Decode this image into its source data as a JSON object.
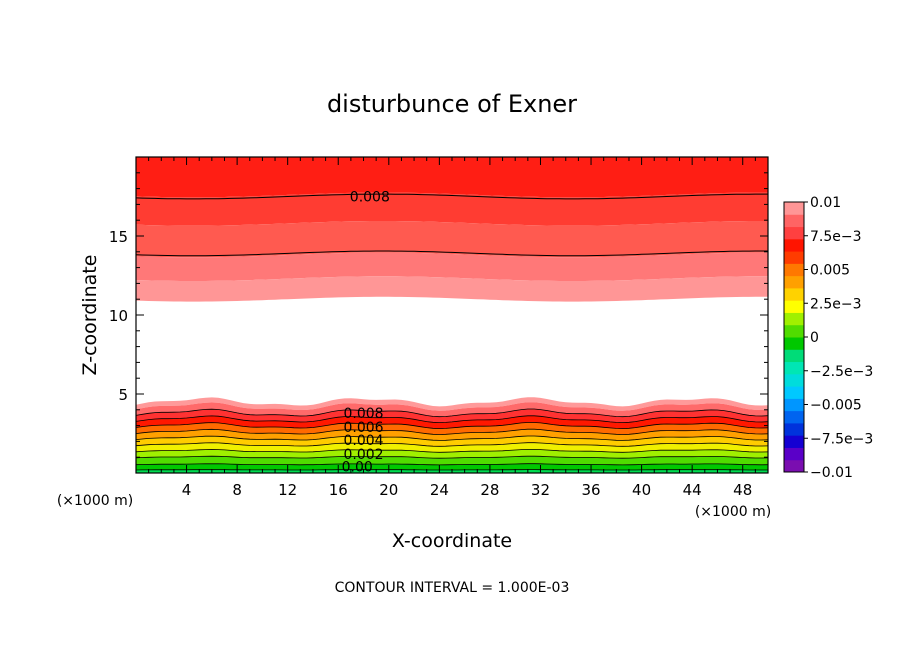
{
  "chart_data": {
    "type": "filled-contour",
    "title": "disturbunce of Exner",
    "xlabel": "X-coordinate",
    "ylabel": "Z-coordinate",
    "x_unit": "(×1000 m)",
    "y_unit": "(×1000 m)",
    "xlim": [
      0,
      50
    ],
    "ylim": [
      0,
      20
    ],
    "x_ticks": [
      4,
      8,
      12,
      16,
      20,
      24,
      28,
      32,
      36,
      40,
      44,
      48
    ],
    "y_ticks": [
      5,
      10,
      15
    ],
    "grid": false,
    "footer": "CONTOUR INTERVAL = 1.000E-03",
    "colorbar": {
      "placement": "right",
      "range": [
        -0.01,
        0.01
      ],
      "tick_labels": [
        {
          "value": 0.01,
          "label": "0.01"
        },
        {
          "value": 0.0075,
          "label": "7.5e−3"
        },
        {
          "value": 0.005,
          "label": "0.005"
        },
        {
          "value": 0.0025,
          "label": "2.5e−3"
        },
        {
          "value": 0,
          "label": "0"
        },
        {
          "value": -0.0025,
          "label": "−2.5e−3"
        },
        {
          "value": -0.005,
          "label": "−0.005"
        },
        {
          "value": -0.0075,
          "label": "−7.5e−3"
        },
        {
          "value": -0.01,
          "label": "−0.01"
        }
      ],
      "colors": [
        "#7a0eb0",
        "#5a00c8",
        "#1400d2",
        "#0032dc",
        "#0064f0",
        "#0096ff",
        "#00c8ff",
        "#00dcdc",
        "#00e6b4",
        "#00dc78",
        "#00c800",
        "#50dc00",
        "#a0f000",
        "#ffff00",
        "#ffd200",
        "#ffa000",
        "#ff7800",
        "#ff3c00",
        "#ff1400",
        "#ff4040",
        "#ff6464",
        "#ff9696"
      ]
    },
    "contour_labels": [
      {
        "text": "0.008",
        "x": 18.5,
        "y": 17.5
      },
      {
        "text": "0.008",
        "x": 18.0,
        "y": 3.8
      },
      {
        "text": "0.006",
        "x": 18.0,
        "y": 2.9
      },
      {
        "text": "0.004",
        "x": 18.0,
        "y": 2.1
      },
      {
        "text": "0.002",
        "x": 18.0,
        "y": 1.2
      },
      {
        "text": "0.00",
        "x": 17.5,
        "y": 0.4
      }
    ],
    "upper_layer_bands": [
      {
        "value": 0.009,
        "color": "#ff1e14",
        "z_range": [
          17.6,
          20
        ]
      },
      {
        "value": 0.008,
        "color": "#ff3c32",
        "z_range": [
          15.8,
          17.6
        ]
      },
      {
        "value": 0.007,
        "color": "#ff5a50",
        "z_range": [
          13.8,
          15.8
        ]
      },
      {
        "value": 0.006,
        "color": "#ff7878",
        "z_range": [
          12.3,
          13.8
        ]
      },
      {
        "value": 0.005,
        "color": "#ff9696",
        "z_range": [
          11.0,
          12.3
        ]
      }
    ],
    "upper_layer_contours_z": [
      17.5,
      13.9
    ],
    "lower_layer_bands": [
      {
        "value": 0.01,
        "color": "#ff9a9a",
        "z_top": 4.5
      },
      {
        "value": 0.0095,
        "color": "#ff6a6a",
        "z_top": 4.2
      },
      {
        "value": 0.009,
        "color": "#ff3232",
        "z_top": 3.8
      },
      {
        "value": 0.008,
        "color": "#ff1800",
        "z_top": 3.4
      },
      {
        "value": 0.007,
        "color": "#ff6a00",
        "z_top": 3.0
      },
      {
        "value": 0.006,
        "color": "#ffa000",
        "z_top": 2.6
      },
      {
        "value": 0.005,
        "color": "#ffcc00",
        "z_top": 2.2
      },
      {
        "value": 0.004,
        "color": "#f0f000",
        "z_top": 1.8
      },
      {
        "value": 0.003,
        "color": "#a0f000",
        "z_top": 1.4
      },
      {
        "value": 0.002,
        "color": "#50dc00",
        "z_top": 1.0
      },
      {
        "value": 0.001,
        "color": "#00c800",
        "z_top": 0.55
      },
      {
        "value": 0.0,
        "color": "#00dc50",
        "z_top": 0.2
      }
    ]
  }
}
